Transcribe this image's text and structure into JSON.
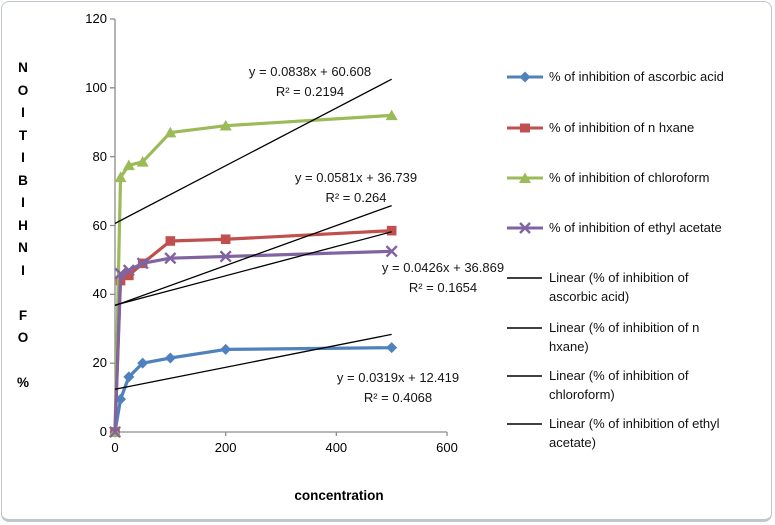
{
  "chart_data": {
    "type": "line",
    "title": "",
    "xlabel": "concentration",
    "ylabel": "% OF INHIBITION",
    "ylabel_stacked": "NOITIBIHNI FO %",
    "xlim": [
      0,
      600
    ],
    "ylim": [
      0,
      120
    ],
    "x_ticks": [
      "0",
      "200",
      "400",
      "600"
    ],
    "y_ticks": [
      "0",
      "20",
      "40",
      "60",
      "80",
      "100",
      "120"
    ],
    "x": [
      0,
      10,
      25,
      50,
      100,
      200,
      500
    ],
    "series": [
      {
        "name": "% of inhibition of ascorbic acid",
        "color": "#4F81BD",
        "marker": "diamond",
        "values": [
          0,
          9.5,
          16,
          20,
          21.5,
          24,
          24.5
        ]
      },
      {
        "name": "% of inhibition of n hxane",
        "color": "#C0504D",
        "marker": "square",
        "values": [
          0,
          44,
          45.5,
          49,
          55.5,
          56,
          58.5
        ]
      },
      {
        "name": "% of inhibition of chloroform",
        "color": "#9BBB59",
        "marker": "triangle",
        "values": [
          0,
          74,
          77.5,
          78.5,
          87,
          89,
          92
        ]
      },
      {
        "name": "% of inhibition of ethyl acetate",
        "color": "#8064A2",
        "marker": "x",
        "values": [
          0,
          46,
          47,
          49,
          50.5,
          51,
          52.5
        ]
      }
    ],
    "trendlines": [
      {
        "for": "% of inhibition of chloroform",
        "equation": "y = 0.0838x + 60.608",
        "r2_label": "R² = 0.2194",
        "slope": 0.0838,
        "intercept": 60.608,
        "x_range": [
          0,
          500
        ]
      },
      {
        "for": "% of inhibition of n hxane",
        "equation": "y = 0.0581x + 36.739",
        "r2_label": "R² = 0.264",
        "slope": 0.0581,
        "intercept": 36.739,
        "x_range": [
          0,
          500
        ]
      },
      {
        "for": "% of inhibition of ethyl acetate",
        "equation": "y = 0.0426x + 36.869",
        "r2_label": "R² = 0.1654",
        "slope": 0.0426,
        "intercept": 36.869,
        "x_range": [
          0,
          500
        ]
      },
      {
        "for": "% of inhibition of ascorbic acid",
        "equation": "y = 0.0319x + 12.419",
        "r2_label": "R² = 0.4068",
        "slope": 0.0319,
        "intercept": 12.419,
        "x_range": [
          0,
          500
        ]
      }
    ],
    "legend": {
      "position": "right",
      "items": [
        {
          "label": "% of inhibition of ascorbic acid",
          "type": "series",
          "marker": "diamond",
          "color": "#4F81BD"
        },
        {
          "label": "% of inhibition of n hxane",
          "type": "series",
          "marker": "square",
          "color": "#C0504D"
        },
        {
          "label": "% of inhibition of chloroform",
          "type": "series",
          "marker": "triangle",
          "color": "#9BBB59"
        },
        {
          "label": "% of inhibition of ethyl acetate",
          "type": "series",
          "marker": "x",
          "color": "#8064A2"
        },
        {
          "label": "Linear (% of inhibition of ascorbic acid)",
          "type": "trendline",
          "marker": "line",
          "color": "#000000"
        },
        {
          "label": "Linear (% of inhibition of n hxane)",
          "type": "trendline",
          "marker": "line",
          "color": "#000000"
        },
        {
          "label": "Linear (% of inhibition of chloroform)",
          "type": "trendline",
          "marker": "line",
          "color": "#000000"
        },
        {
          "label": "Linear (% of inhibition of ethyl acetate)",
          "type": "trendline",
          "marker": "line",
          "color": "#000000"
        }
      ]
    },
    "grid": false,
    "axis_color": "#8C8C8C",
    "trendline_color": "#000000",
    "text_color": "#000000"
  }
}
